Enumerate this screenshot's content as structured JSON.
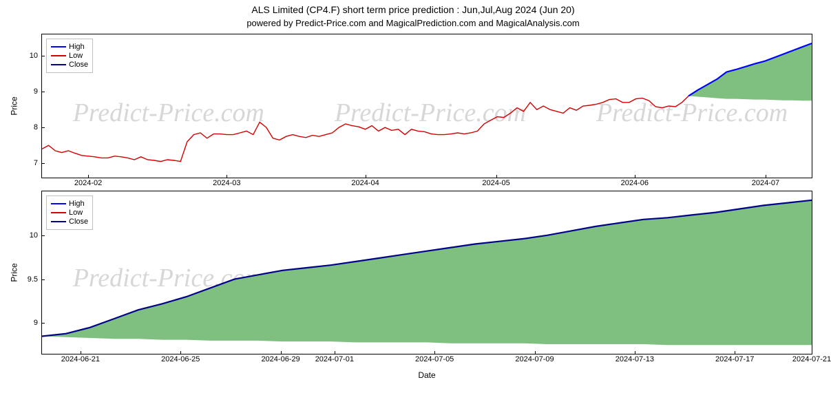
{
  "title": "ALS Limited (CP4.F) short term price prediction : Jun,Jul,Aug 2024 (Jun 20)",
  "subtitle": "powered by Predict-Price.com and MagicalPrediction.com and MagicalAnalysis.com",
  "watermark_text": "Predict-Price.com",
  "legend": {
    "items": [
      "High",
      "Low",
      "Close"
    ],
    "colors": [
      "#0000ff",
      "#d40000",
      "#00008b"
    ]
  },
  "axis_labels": {
    "x": "Date",
    "y": "Price"
  },
  "colors": {
    "line_high": "#0000ff",
    "line_low": "#d40000",
    "line_close": "#00008b",
    "fill": "#7fbf7f",
    "border": "#000000",
    "tick": "#000000",
    "watermark": "#d7d7d7",
    "legend_border": "#bfbfbf"
  },
  "style": {
    "line_width_hist": 1.4,
    "line_width_pred": 2.2,
    "font_size_title": 14,
    "font_size_tick": 11,
    "font_size_label": 12
  },
  "top_chart": {
    "type": "line+area",
    "ylim": [
      6.6,
      10.6
    ],
    "yticks": [
      7,
      8,
      9,
      10
    ],
    "xlabels": [
      "2024-02",
      "2024-03",
      "2024-04",
      "2024-05",
      "2024-06",
      "2024-07"
    ],
    "xlabel_pos_pct": [
      6,
      24,
      42,
      59,
      77,
      94
    ],
    "hist_series": [
      7.4,
      7.5,
      7.35,
      7.3,
      7.35,
      7.28,
      7.22,
      7.2,
      7.18,
      7.15,
      7.15,
      7.2,
      7.18,
      7.15,
      7.1,
      7.18,
      7.1,
      7.08,
      7.05,
      7.1,
      7.08,
      7.05,
      7.6,
      7.8,
      7.85,
      7.7,
      7.82,
      7.82,
      7.8,
      7.8,
      7.85,
      7.9,
      7.8,
      8.15,
      8.0,
      7.7,
      7.65,
      7.75,
      7.8,
      7.75,
      7.72,
      7.78,
      7.75,
      7.8,
      7.85,
      8.0,
      8.1,
      8.05,
      8.02,
      7.95,
      8.05,
      7.9,
      8.0,
      7.92,
      7.95,
      7.8,
      7.95,
      7.9,
      7.88,
      7.82,
      7.8,
      7.8,
      7.82,
      7.85,
      7.82,
      7.85,
      7.9,
      8.1,
      8.2,
      8.3,
      8.28,
      8.4,
      8.55,
      8.45,
      8.7,
      8.5,
      8.6,
      8.5,
      8.45,
      8.4,
      8.55,
      8.48,
      8.6,
      8.62,
      8.65,
      8.7,
      8.78,
      8.8,
      8.7,
      8.7,
      8.8,
      8.82,
      8.75,
      8.58,
      8.55,
      8.6,
      8.58,
      8.7,
      8.88
    ],
    "pred_high": [
      8.88,
      9.05,
      9.2,
      9.35,
      9.55,
      9.62,
      9.7,
      9.78,
      9.85,
      9.95,
      10.05,
      10.15,
      10.25,
      10.35
    ],
    "pred_low": [
      8.88,
      8.86,
      8.84,
      8.82,
      8.8,
      8.8,
      8.79,
      8.78,
      8.78,
      8.77,
      8.76,
      8.76,
      8.75,
      8.75
    ],
    "pred_start_pct": 84,
    "pred_end_pct": 100
  },
  "bottom_chart": {
    "type": "line+area",
    "ylim": [
      8.65,
      10.5
    ],
    "yticks": [
      9.0,
      9.5,
      10.0
    ],
    "xlabels": [
      "2024-06-21",
      "2024-06-25",
      "2024-06-29",
      "2024-07-01",
      "2024-07-05",
      "2024-07-09",
      "2024-07-13",
      "2024-07-17",
      "2024-07-21"
    ],
    "xlabel_pos_pct": [
      5,
      18,
      31,
      38,
      51,
      64,
      77,
      90,
      100
    ],
    "pred_high": [
      8.85,
      8.88,
      8.95,
      9.05,
      9.15,
      9.22,
      9.3,
      9.4,
      9.5,
      9.55,
      9.6,
      9.63,
      9.66,
      9.7,
      9.74,
      9.78,
      9.82,
      9.86,
      9.9,
      9.93,
      9.96,
      10.0,
      10.05,
      10.1,
      10.14,
      10.18,
      10.2,
      10.23,
      10.26,
      10.3,
      10.34,
      10.37,
      10.4
    ],
    "pred_low": [
      8.85,
      8.84,
      8.83,
      8.82,
      8.82,
      8.81,
      8.81,
      8.8,
      8.8,
      8.8,
      8.79,
      8.79,
      8.79,
      8.78,
      8.78,
      8.78,
      8.78,
      8.77,
      8.77,
      8.77,
      8.77,
      8.76,
      8.76,
      8.76,
      8.76,
      8.76,
      8.75,
      8.75,
      8.75,
      8.75,
      8.75,
      8.75,
      8.75
    ],
    "pred_start_pct": 0,
    "pred_end_pct": 100
  }
}
